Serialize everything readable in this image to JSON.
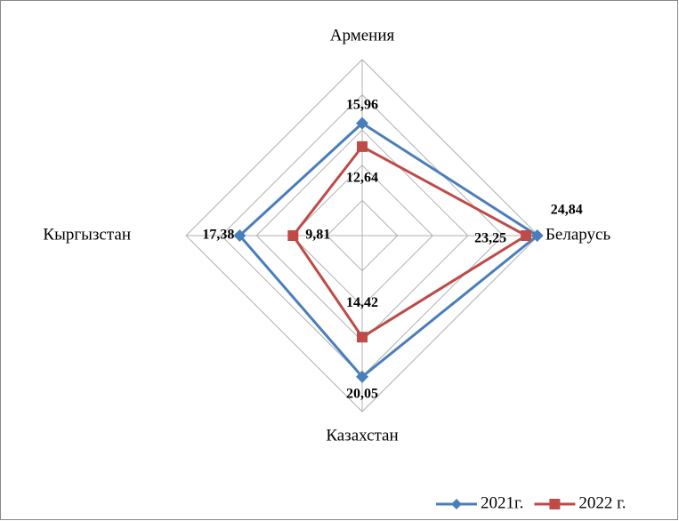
{
  "chart_data": {
    "type": "radar",
    "categories": [
      "Армения",
      "Беларусь",
      "Казахстан",
      "Кыргызстан"
    ],
    "series": [
      {
        "name": "2021г.",
        "color": "#4a7ebb",
        "marker": "diamond",
        "values": [
          15.96,
          24.84,
          20.05,
          17.38
        ],
        "value_labels": [
          "15,96",
          "24,84",
          "20,05",
          "17,38"
        ]
      },
      {
        "name": "2022 г.",
        "color": "#be4b48",
        "marker": "square",
        "values": [
          12.64,
          23.25,
          14.42,
          9.81
        ],
        "value_labels": [
          "12,64",
          "23,25",
          "14,42",
          "9,81"
        ]
      }
    ],
    "ylim": [
      0,
      25
    ],
    "yticks": [
      0,
      5,
      10,
      15,
      20,
      25
    ],
    "grid": true,
    "legend": "bottom"
  }
}
